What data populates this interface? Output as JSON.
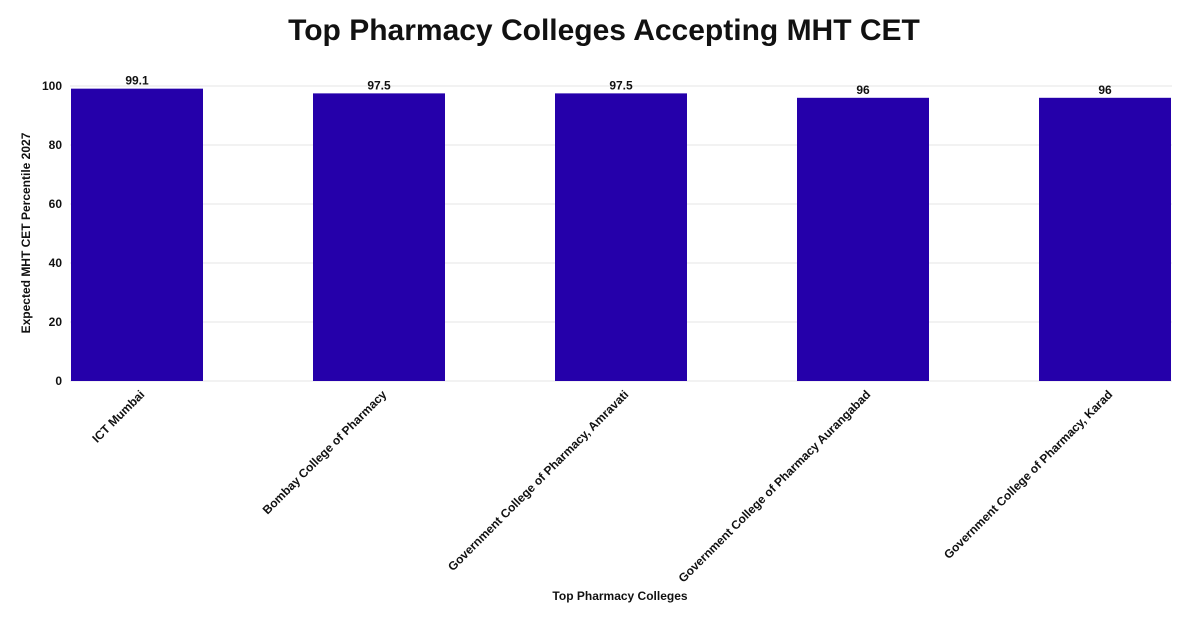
{
  "chart_data": {
    "type": "bar",
    "title": "Top Pharmacy Colleges Accepting MHT CET",
    "x_label": "Top Pharmacy Colleges",
    "y_label": "Expected MHT CET Percentile 2027",
    "categories": [
      "ICT Mumbai",
      "Bombay College of Pharmacy",
      "Government College of Pharmacy, Amravati",
      "Government College of Pharmacy Aurangabad",
      "Government College of Pharmacy, Karad"
    ],
    "values": [
      99.1,
      97.5,
      97.5,
      96,
      96
    ],
    "color": "#2500aa",
    "ylim": [
      0,
      100
    ],
    "yticks": [
      0,
      20,
      40,
      60,
      80,
      100
    ],
    "grid": true
  }
}
